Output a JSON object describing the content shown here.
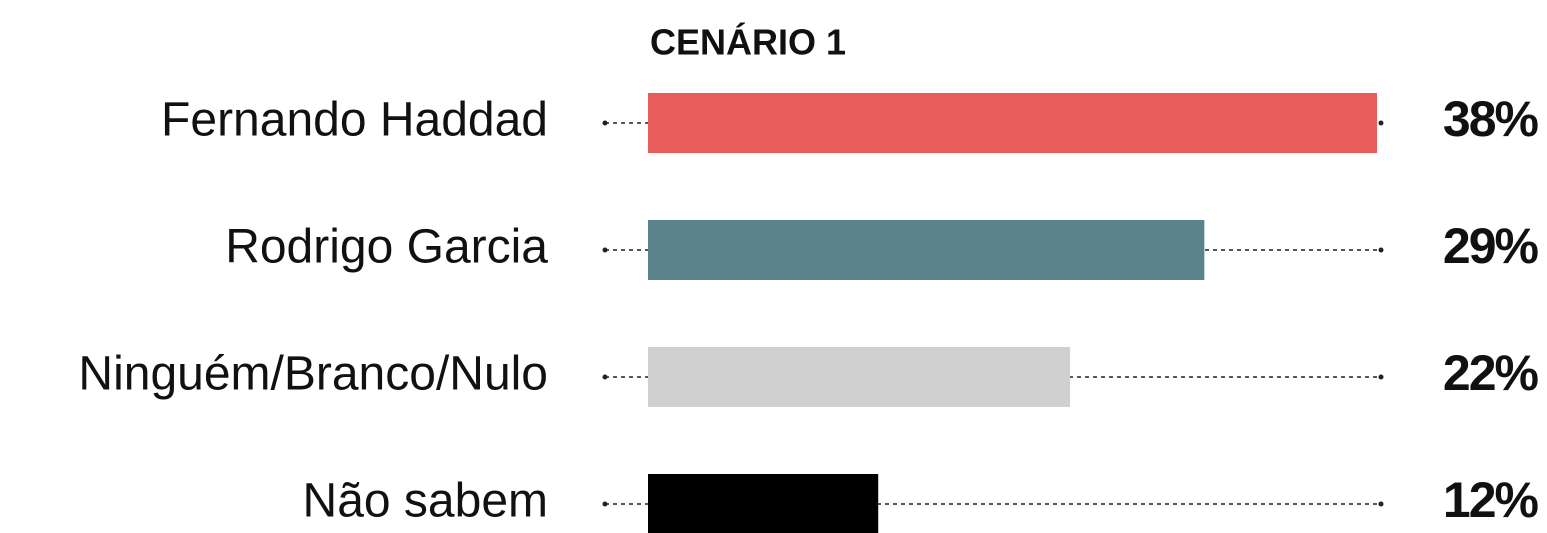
{
  "chart_data": {
    "type": "bar",
    "orientation": "horizontal",
    "title": "CENÁRIO 1",
    "categories": [
      "Fernando Haddad",
      "Rodrigo Garcia",
      "Ninguém/Branco/Nulo",
      "Não sabem"
    ],
    "values": [
      38,
      29,
      22,
      12
    ],
    "value_labels": [
      "38%",
      "29%",
      "22%",
      "12%"
    ],
    "colors": [
      "#e85d5b",
      "#5a838b",
      "#d0d0d0",
      "#000000"
    ]
  }
}
